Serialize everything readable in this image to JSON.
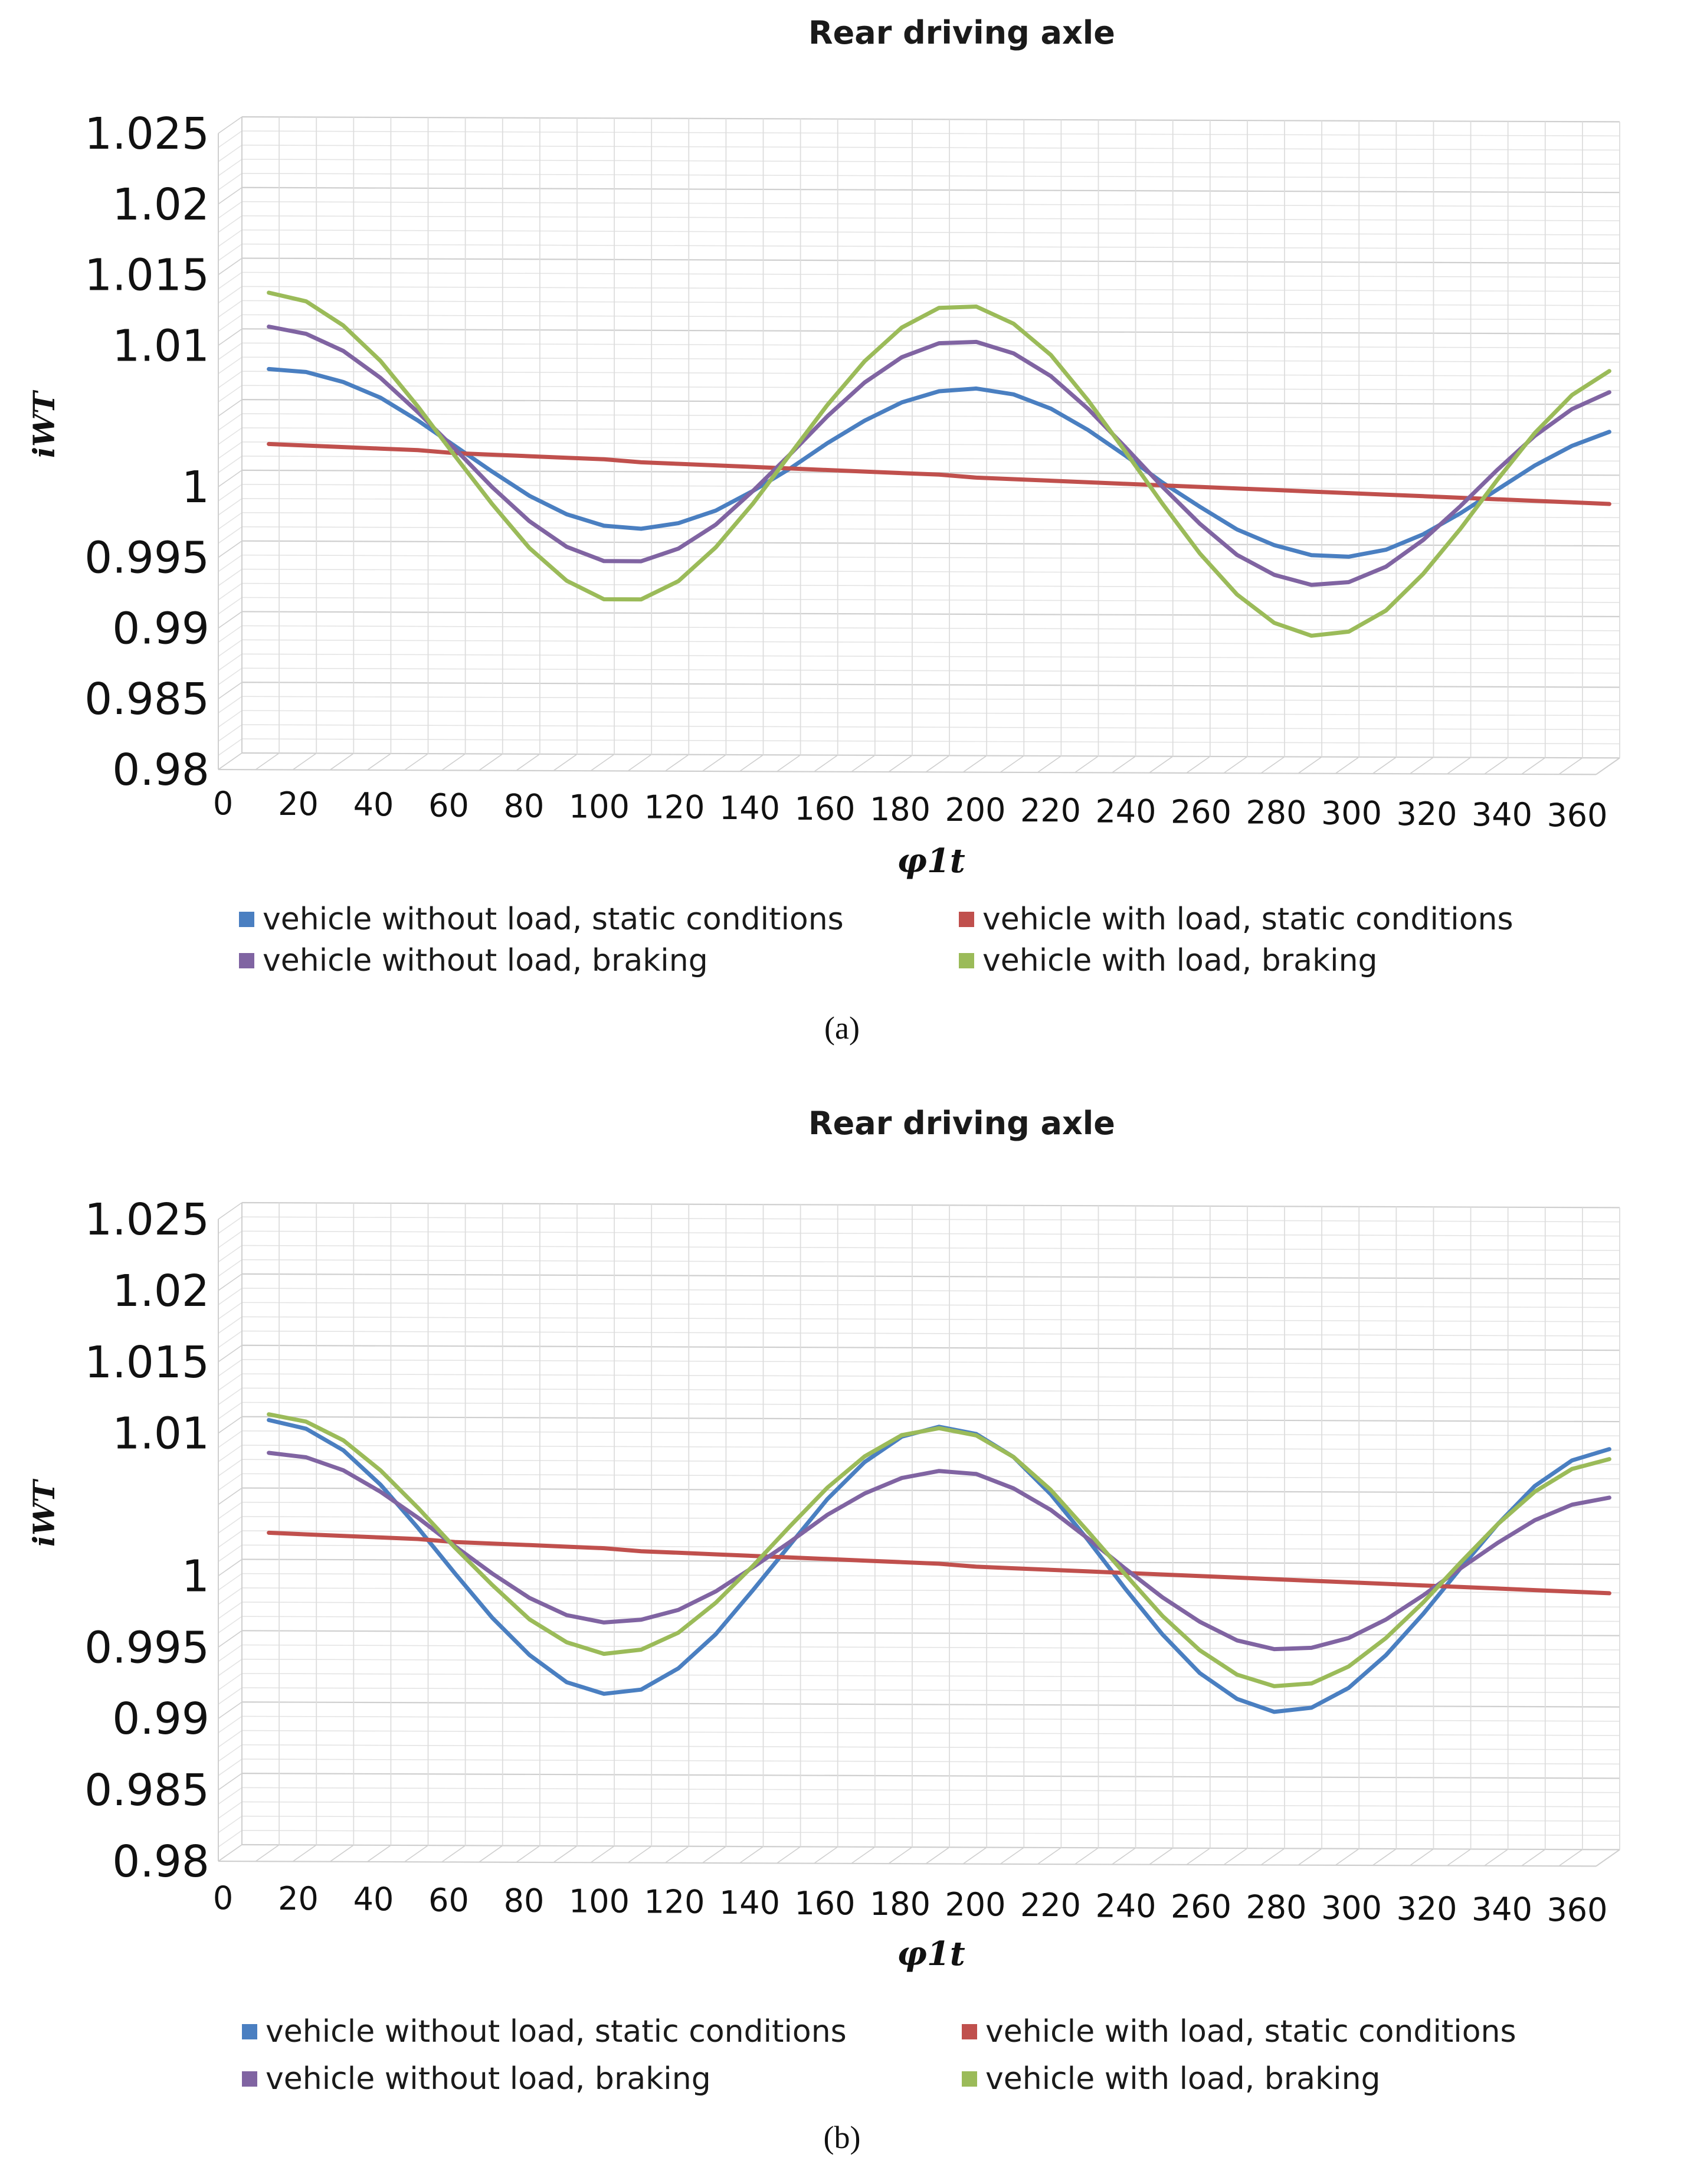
{
  "chart_data": [
    {
      "type": "line",
      "panel": "a",
      "title": "Rear driving axle",
      "xlabel": "φ1t",
      "ylabel": "iWT",
      "caption": "(a)",
      "x": [
        0,
        10,
        20,
        30,
        40,
        50,
        60,
        70,
        80,
        90,
        100,
        110,
        120,
        130,
        140,
        150,
        160,
        170,
        180,
        190,
        200,
        210,
        220,
        230,
        240,
        250,
        260,
        270,
        280,
        290,
        300,
        310,
        320,
        330,
        340,
        350,
        360
      ],
      "x_ticks": [
        0,
        20,
        40,
        60,
        80,
        100,
        120,
        140,
        160,
        180,
        200,
        220,
        240,
        260,
        280,
        300,
        320,
        340,
        360
      ],
      "y_ticks": [
        "0.98",
        "0.985",
        "0.99",
        "0.995",
        "1",
        "1.005",
        "1.01",
        "1.015",
        "1.02",
        "1.025"
      ],
      "y_tick_labels_shown": [
        "0.98",
        "0.985",
        "0.99",
        "0.995",
        "1",
        "1.01",
        "1.015",
        "1.02",
        "1.025"
      ],
      "ylim": [
        0.98,
        1.025
      ],
      "legend": [
        "vehicle without load, static conditions",
        "vehicle with load, static conditions",
        "vehicle without load, braking",
        "vehicle with load, braking"
      ],
      "series": [
        {
          "name": "vehicle without load, static conditions",
          "color": "#4a7fc1",
          "values": [
            1.0075,
            1.0073,
            1.0066,
            1.0055,
            1.0039,
            1.0021,
            1.0003,
            0.9986,
            0.9973,
            0.9965,
            0.9963,
            0.9967,
            0.9976,
            0.999,
            1.0006,
            1.0024,
            1.004,
            1.0053,
            1.0061,
            1.0063,
            1.0059,
            1.0049,
            1.0034,
            1.0016,
            0.9997,
            0.998,
            0.9964,
            0.9953,
            0.9946,
            0.9945,
            0.995,
            0.9961,
            0.9976,
            0.9993,
            1.001,
            1.0024,
            1.0034
          ]
        },
        {
          "name": "vehicle with load, static conditions",
          "color": "#c0504d",
          "values": [
            1.0022,
            1.0021,
            1.002,
            1.0019,
            1.0018,
            1.0016,
            1.0015,
            1.0014,
            1.0013,
            1.0012,
            1.001,
            1.0009,
            1.0008,
            1.0007,
            1.0006,
            1.0005,
            1.0004,
            1.0003,
            1.0002,
            1.0,
            0.9999,
            0.9998,
            0.9997,
            0.9996,
            0.9995,
            0.9994,
            0.9993,
            0.9992,
            0.9991,
            0.999,
            0.9989,
            0.9988,
            0.9987,
            0.9986,
            0.9985,
            0.9984,
            0.9983
          ]
        },
        {
          "name": "vehicle without load, braking",
          "color": "#8064a2",
          "values": [
            1.0105,
            1.01,
            1.0088,
            1.0069,
            1.0045,
            1.0019,
            0.9992,
            0.9968,
            0.995,
            0.994,
            0.994,
            0.9949,
            0.9966,
            0.999,
            1.0016,
            1.0043,
            1.0067,
            1.0085,
            1.0095,
            1.0096,
            1.0088,
            1.0072,
            1.0049,
            1.0022,
            0.9994,
            0.9968,
            0.9946,
            0.9932,
            0.9925,
            0.9927,
            0.9938,
            0.9957,
            0.9981,
            1.0007,
            1.0031,
            1.005,
            1.0062
          ]
        },
        {
          "name": "vehicle with load, braking",
          "color": "#9bbb59",
          "values": [
            1.0129,
            1.0123,
            1.0106,
            1.0081,
            1.0049,
            1.0014,
            0.998,
            0.9949,
            0.9926,
            0.9913,
            0.9913,
            0.9926,
            0.995,
            0.9981,
            1.0016,
            1.0051,
            1.0082,
            1.0106,
            1.012,
            1.0121,
            1.0109,
            1.0087,
            1.0055,
            1.0019,
            0.9982,
            0.9947,
            0.9918,
            0.9898,
            0.9889,
            0.9892,
            0.9907,
            0.9933,
            0.9965,
            1.0,
            1.0033,
            1.006,
            1.0077
          ]
        }
      ]
    },
    {
      "type": "line",
      "panel": "b",
      "title": "Rear driving axle",
      "xlabel": "φ1t",
      "ylabel": "iWT",
      "caption": "(b)",
      "x": [
        0,
        10,
        20,
        30,
        40,
        50,
        60,
        70,
        80,
        90,
        100,
        110,
        120,
        130,
        140,
        150,
        160,
        170,
        180,
        190,
        200,
        210,
        220,
        230,
        240,
        250,
        260,
        270,
        280,
        290,
        300,
        310,
        320,
        330,
        340,
        350,
        360
      ],
      "x_ticks": [
        0,
        20,
        40,
        60,
        80,
        100,
        120,
        140,
        160,
        180,
        200,
        220,
        240,
        260,
        280,
        300,
        320,
        340,
        360
      ],
      "y_ticks": [
        "0.98",
        "0.985",
        "0.99",
        "0.995",
        "1",
        "1.005",
        "1.01",
        "1.015",
        "1.02",
        "1.025"
      ],
      "y_tick_labels_shown": [
        "0.98",
        "0.985",
        "0.99",
        "0.995",
        "1",
        "1.01",
        "1.015",
        "1.02",
        "1.025"
      ],
      "ylim": [
        0.98,
        1.025
      ],
      "legend": [
        "vehicle without load, static conditions",
        "vehicle with load, static conditions",
        "vehicle without load, braking",
        "vehicle with load, braking"
      ],
      "series": [
        {
          "name": "vehicle without load, static conditions",
          "color": "#4a7fc1",
          "values": [
            1.0101,
            1.0095,
            1.008,
            1.0056,
            1.0026,
            0.9994,
            0.9963,
            0.9937,
            0.9918,
            0.991,
            0.9913,
            0.9928,
            0.9952,
            0.9983,
            1.0015,
            1.0047,
            1.0073,
            1.0091,
            1.0098,
            1.0093,
            1.0077,
            1.0051,
            1.0019,
            0.9985,
            0.9953,
            0.9926,
            0.9908,
            0.9899,
            0.9902,
            0.9916,
            0.9939,
            0.9968,
            1.0,
            1.0031,
            1.0058,
            1.0076,
            1.0084
          ]
        },
        {
          "name": "vehicle with load, static conditions",
          "color": "#c0504d",
          "values": [
            1.0022,
            1.0021,
            1.002,
            1.0019,
            1.0018,
            1.0016,
            1.0015,
            1.0014,
            1.0013,
            1.0012,
            1.001,
            1.0009,
            1.0008,
            1.0007,
            1.0006,
            1.0005,
            1.0004,
            1.0003,
            1.0002,
            1.0,
            0.9999,
            0.9998,
            0.9997,
            0.9996,
            0.9995,
            0.9994,
            0.9993,
            0.9992,
            0.9991,
            0.999,
            0.9989,
            0.9988,
            0.9987,
            0.9986,
            0.9985,
            0.9984,
            0.9983
          ]
        },
        {
          "name": "vehicle without load, braking",
          "color": "#8064a2",
          "values": [
            1.0078,
            1.0075,
            1.0066,
            1.0051,
            1.0033,
            1.0013,
            0.9994,
            0.9977,
            0.9965,
            0.996,
            0.9962,
            0.9969,
            0.9982,
            0.9999,
            1.0017,
            1.0036,
            1.0051,
            1.0062,
            1.0067,
            1.0065,
            1.0055,
            1.004,
            1.002,
            0.9999,
            0.9979,
            0.9962,
            0.9949,
            0.9943,
            0.9944,
            0.9951,
            0.9964,
            0.9981,
            1.0,
            1.0018,
            1.0034,
            1.0045,
            1.005
          ]
        },
        {
          "name": "vehicle with load, braking",
          "color": "#9bbb59",
          "values": [
            1.0105,
            1.01,
            1.0087,
            1.0066,
            1.004,
            1.0012,
            0.9986,
            0.9962,
            0.9946,
            0.9938,
            0.9941,
            0.9953,
            0.9974,
            1.0,
            1.0028,
            1.0055,
            1.0077,
            1.0092,
            1.0097,
            1.0092,
            1.0077,
            1.0054,
            1.0025,
            0.9995,
            0.9966,
            0.9942,
            0.9925,
            0.9917,
            0.9919,
            0.9931,
            0.9951,
            0.9976,
            1.0004,
            1.0031,
            1.0054,
            1.007,
            1.0077
          ]
        }
      ]
    }
  ]
}
